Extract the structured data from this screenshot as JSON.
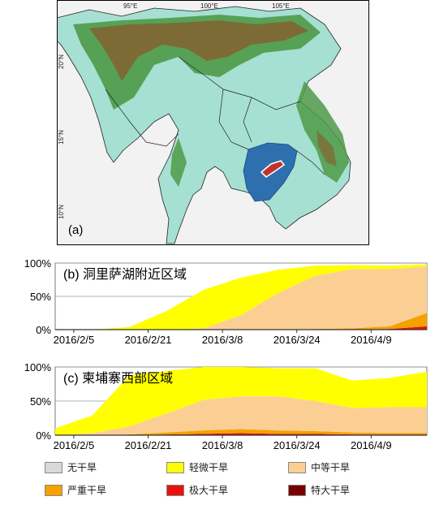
{
  "map": {
    "panel_label": "(a)",
    "lon_labels": [
      "95°E",
      "100°E",
      "105°E"
    ],
    "lat_labels": [
      "20°N",
      "15°N",
      "10°N"
    ],
    "colors": {
      "sea": "#f2f2f2",
      "lowland": "#a6e0d2",
      "hills": "#4f9a49",
      "mountains": "#8a5a2a",
      "lake_basin": "#2e6fb0",
      "lake": "#c0332f"
    }
  },
  "legend": {
    "items": [
      {
        "label": "无干旱",
        "color": "#d9d9d9"
      },
      {
        "label": "轻微干旱",
        "color": "#ffff00"
      },
      {
        "label": "中等干旱",
        "color": "#fbcf94"
      },
      {
        "label": "严重干旱",
        "color": "#f5a100"
      },
      {
        "label": "极大干旱",
        "color": "#e8110d"
      },
      {
        "label": "特大干旱",
        "color": "#7a0000"
      }
    ]
  },
  "chart_data": [
    {
      "type": "area",
      "panel": "b",
      "title": "(b) 洞里萨湖附近区域",
      "x": [
        "2016/2/1",
        "2016/2/9",
        "2016/2/17",
        "2016/2/25",
        "2016/3/4",
        "2016/3/12",
        "2016/3/20",
        "2016/3/28",
        "2016/4/5",
        "2016/4/13",
        "2016/4/21"
      ],
      "xticks": [
        "2016/2/5",
        "2016/2/21",
        "2016/3/8",
        "2016/3/24",
        "2016/4/9"
      ],
      "yticks": [
        "0%",
        "50%",
        "100%"
      ],
      "ylim": [
        0,
        100
      ],
      "stacked": true,
      "series": [
        {
          "color": "#7a0000",
          "values": [
            0,
            0,
            0,
            0,
            0,
            0,
            0,
            0,
            0,
            0,
            1
          ]
        },
        {
          "color": "#e8110d",
          "values": [
            0,
            0,
            0,
            0,
            0,
            0,
            0,
            0,
            0,
            1,
            4
          ]
        },
        {
          "color": "#f5a100",
          "values": [
            0,
            0,
            0,
            0,
            0,
            0,
            0,
            1,
            2,
            4,
            20
          ]
        },
        {
          "color": "#fbcf94",
          "values": [
            0,
            0,
            0,
            0,
            2,
            22,
            55,
            80,
            89,
            86,
            70
          ]
        },
        {
          "color": "#ffff00",
          "values": [
            0,
            0,
            4,
            28,
            58,
            56,
            35,
            15,
            6,
            5,
            3
          ]
        }
      ]
    },
    {
      "type": "area",
      "panel": "c",
      "title": "(c) 柬埔寨西部区域",
      "x": [
        "2016/2/1",
        "2016/2/9",
        "2016/2/17",
        "2016/2/25",
        "2016/3/4",
        "2016/3/12",
        "2016/3/20",
        "2016/3/28",
        "2016/4/5",
        "2016/4/13",
        "2016/4/21"
      ],
      "xticks": [
        "2016/2/5",
        "2016/2/21",
        "2016/3/8",
        "2016/3/24",
        "2016/4/9"
      ],
      "yticks": [
        "0%",
        "50%",
        "100%"
      ],
      "ylim": [
        0,
        100
      ],
      "stacked": true,
      "series": [
        {
          "color": "#7a0000",
          "values": [
            0,
            0,
            0,
            0,
            0,
            0,
            0,
            0,
            0,
            0,
            0
          ]
        },
        {
          "color": "#e8110d",
          "values": [
            0,
            0,
            0,
            1,
            2,
            3,
            2,
            2,
            1,
            1,
            1
          ]
        },
        {
          "color": "#f5a100",
          "values": [
            0,
            0,
            1,
            3,
            5,
            6,
            5,
            4,
            3,
            2,
            2
          ]
        },
        {
          "color": "#fbcf94",
          "values": [
            0,
            3,
            12,
            28,
            45,
            48,
            50,
            44,
            36,
            38,
            38
          ]
        },
        {
          "color": "#ffff00",
          "values": [
            10,
            26,
            75,
            62,
            48,
            43,
            41,
            48,
            40,
            43,
            52
          ]
        }
      ]
    }
  ]
}
